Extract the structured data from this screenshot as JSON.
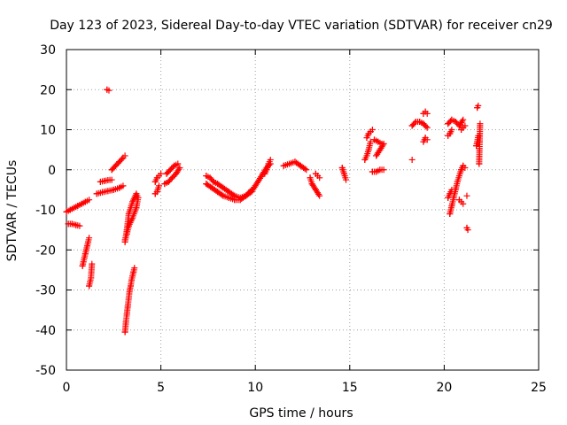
{
  "chart_data": {
    "type": "scatter",
    "title": "Day 123 of 2023, Sidereal Day-to-day VTEC variation (SDTVAR) for receiver cn29",
    "xlabel": "GPS time / hours",
    "ylabel": "SDTVAR / TECUs",
    "xlim": [
      0,
      25
    ],
    "ylim": [
      -50,
      30
    ],
    "xticks": [
      "0",
      "5",
      "10",
      "15",
      "20",
      "25"
    ],
    "yticks": [
      "30",
      "20",
      "10",
      "0",
      "-10",
      "-20",
      "-30",
      "-40",
      "-50"
    ],
    "grid": true,
    "marker": "+",
    "color": "#ff0000",
    "segments": [
      {
        "x": [
          0.0,
          0.2,
          0.4,
          0.6,
          0.8,
          1.0,
          1.2
        ],
        "y": [
          -10.5,
          -10.0,
          -9.5,
          -9.0,
          -8.5,
          -8.0,
          -7.5
        ]
      },
      {
        "x": [
          0.1,
          0.3,
          0.5,
          0.7
        ],
        "y": [
          -13.5,
          -13.5,
          -13.8,
          -14.0
        ]
      },
      {
        "x": [
          0.85,
          0.9,
          0.95,
          1.0,
          1.05,
          1.1,
          1.15,
          1.2
        ],
        "y": [
          -24.0,
          -23.0,
          -22.0,
          -21.0,
          -20.0,
          -19.0,
          -18.0,
          -17.0
        ]
      },
      {
        "x": [
          1.2,
          1.25,
          1.3,
          1.35
        ],
        "y": [
          -29.0,
          -28.0,
          -27.0,
          -23.5
        ]
      },
      {
        "x": [
          1.6,
          1.9,
          2.2,
          2.5,
          2.8,
          3.0
        ],
        "y": [
          -6.0,
          -5.6,
          -5.3,
          -5.0,
          -4.5,
          -4.0
        ]
      },
      {
        "x": [
          1.8,
          2.0,
          2.2,
          2.4
        ],
        "y": [
          -3.0,
          -2.8,
          -2.6,
          -2.5
        ]
      },
      {
        "x": [
          2.4,
          2.6,
          2.8,
          3.0,
          3.1
        ],
        "y": [
          0.0,
          1.0,
          2.0,
          3.0,
          3.5
        ]
      },
      {
        "x": [
          2.15,
          2.25
        ],
        "y": [
          20.0,
          19.8
        ]
      },
      {
        "x": [
          3.1,
          3.15,
          3.2,
          3.25,
          3.3,
          3.35,
          3.4,
          3.45,
          3.5,
          3.55,
          3.6
        ],
        "y": [
          -40.5,
          -38.0,
          -36.0,
          -34.0,
          -32.0,
          -30.0,
          -29.0,
          -27.5,
          -26.5,
          -25.5,
          -24.5
        ]
      },
      {
        "x": [
          3.1,
          3.2,
          3.3,
          3.5,
          3.7,
          3.8,
          3.7,
          3.5,
          3.3,
          3.2,
          3.1
        ],
        "y": [
          -18.0,
          -15.0,
          -11.0,
          -8.0,
          -6.0,
          -7.0,
          -9.5,
          -12.0,
          -14.0,
          -16.0,
          -17.5
        ]
      },
      {
        "x": [
          4.7,
          4.8,
          4.9
        ],
        "y": [
          -6.0,
          -5.5,
          -4.0
        ]
      },
      {
        "x": [
          4.7,
          4.8,
          4.9,
          5.0
        ],
        "y": [
          -3.0,
          -2.0,
          -1.5,
          -1.0
        ]
      },
      {
        "x": [
          5.2,
          5.4,
          5.6,
          5.8,
          6.0
        ],
        "y": [
          -3.5,
          -3.0,
          -2.0,
          -1.0,
          0.5
        ]
      },
      {
        "x": [
          5.3,
          5.5,
          5.7,
          5.9
        ],
        "y": [
          -1.0,
          0.0,
          1.0,
          1.5
        ]
      },
      {
        "x": [
          7.4,
          7.6,
          7.8,
          8.0,
          8.3,
          8.6,
          8.9,
          9.2,
          9.5,
          9.8,
          10.0,
          10.2,
          10.4,
          10.6,
          10.8
        ],
        "y": [
          -1.5,
          -2.0,
          -3.0,
          -3.5,
          -4.5,
          -5.5,
          -6.5,
          -7.0,
          -6.5,
          -5.5,
          -4.0,
          -2.5,
          -1.0,
          0.5,
          1.5
        ]
      },
      {
        "x": [
          7.4,
          7.7,
          8.0,
          8.3,
          8.6,
          8.9,
          9.2,
          9.5,
          9.8
        ],
        "y": [
          -3.5,
          -4.5,
          -5.5,
          -6.5,
          -7.0,
          -7.5,
          -7.5,
          -6.5,
          -5.0
        ]
      },
      {
        "x": [
          10.5,
          10.6,
          10.7,
          10.8
        ],
        "y": [
          -1.0,
          0.0,
          1.5,
          2.5
        ]
      },
      {
        "x": [
          11.5,
          11.8,
          12.1,
          12.4,
          12.7
        ],
        "y": [
          1.0,
          1.5,
          2.0,
          1.0,
          0.0
        ]
      },
      {
        "x": [
          12.9,
          13.0,
          13.2,
          13.4
        ],
        "y": [
          -2.0,
          -3.5,
          -5.0,
          -6.5
        ]
      },
      {
        "x": [
          13.2,
          13.3,
          13.4
        ],
        "y": [
          -1.0,
          -1.5,
          -2.0
        ]
      },
      {
        "x": [
          14.6,
          14.7,
          14.8
        ],
        "y": [
          0.5,
          -1.0,
          -2.5
        ]
      },
      {
        "x": [
          15.8,
          15.9,
          16.0,
          16.1
        ],
        "y": [
          2.5,
          3.5,
          5.0,
          7.0
        ]
      },
      {
        "x": [
          15.9,
          16.0,
          16.1,
          16.2
        ],
        "y": [
          8.0,
          9.0,
          9.5,
          10.0
        ]
      },
      {
        "x": [
          16.2,
          16.4,
          16.6,
          16.8
        ],
        "y": [
          -0.5,
          -0.5,
          0.0,
          0.0
        ]
      },
      {
        "x": [
          16.4,
          16.6,
          16.8
        ],
        "y": [
          3.5,
          5.0,
          6.5
        ]
      },
      {
        "x": [
          16.3,
          16.5,
          16.7
        ],
        "y": [
          7.5,
          7.0,
          6.5
        ]
      },
      {
        "x": [
          18.3
        ],
        "y": [
          2.5
        ]
      },
      {
        "x": [
          18.3,
          18.5,
          18.7,
          18.9,
          19.1
        ],
        "y": [
          11.0,
          12.0,
          12.0,
          11.5,
          10.5
        ]
      },
      {
        "x": [
          18.9,
          19.0,
          19.1
        ],
        "y": [
          7.0,
          8.0,
          7.5
        ]
      },
      {
        "x": [
          18.9,
          19.0,
          19.1
        ],
        "y": [
          14.0,
          14.5,
          14.0
        ]
      },
      {
        "x": [
          20.2,
          20.3,
          20.4
        ],
        "y": [
          8.5,
          9.0,
          10.0
        ]
      },
      {
        "x": [
          20.2,
          20.4,
          20.6,
          20.8,
          21.0
        ],
        "y": [
          11.5,
          12.5,
          12.0,
          11.0,
          12.5
        ]
      },
      {
        "x": [
          20.9,
          21.0,
          21.1
        ],
        "y": [
          10.0,
          10.5,
          11.0
        ]
      },
      {
        "x": [
          20.3,
          20.4,
          20.5,
          20.6,
          20.7,
          20.8,
          20.9,
          21.0,
          21.1
        ],
        "y": [
          -11.0,
          -9.0,
          -7.0,
          -5.0,
          -3.0,
          -1.5,
          0.0,
          1.0,
          0.5
        ]
      },
      {
        "x": [
          20.2,
          20.3,
          20.4
        ],
        "y": [
          -7.0,
          -6.0,
          -5.0
        ]
      },
      {
        "x": [
          20.8,
          20.9,
          21.0
        ],
        "y": [
          -7.5,
          -8.0,
          -8.5
        ]
      },
      {
        "x": [
          21.2,
          21.25
        ],
        "y": [
          -14.5,
          -15.0
        ]
      },
      {
        "x": [
          21.2
        ],
        "y": [
          -6.5
        ]
      },
      {
        "x": [
          21.7,
          21.75,
          21.8
        ],
        "y": [
          6.0,
          7.0,
          8.5
        ]
      },
      {
        "x": [
          21.75,
          21.8
        ],
        "y": [
          15.5,
          16.0
        ]
      },
      {
        "x": [
          21.85,
          21.9
        ],
        "y": [
          1.5,
          11.5
        ]
      }
    ]
  }
}
